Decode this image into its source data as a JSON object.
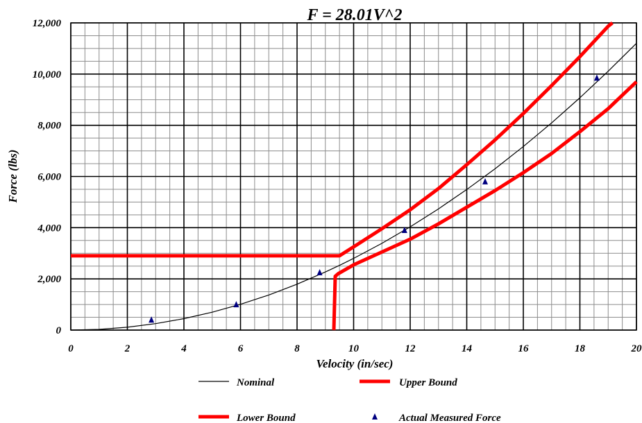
{
  "chart_data": {
    "type": "line",
    "title": "F = 28.01V^2",
    "xlabel": "Velocity (in/sec)",
    "ylabel": "Force (lbs)",
    "xlim": [
      0,
      20
    ],
    "ylim": [
      0,
      12000
    ],
    "x_major_ticks": [
      0,
      2,
      4,
      6,
      8,
      10,
      12,
      14,
      16,
      18,
      20
    ],
    "x_tick_labels": [
      "0",
      "2",
      "4",
      "6",
      "8",
      "10",
      "12",
      "14",
      "16",
      "18",
      "20"
    ],
    "y_major_ticks": [
      0,
      2000,
      4000,
      6000,
      8000,
      10000,
      12000
    ],
    "y_tick_labels": [
      "0",
      "2,000",
      "4,000",
      "6,000",
      "8,000",
      "10,000",
      "12,000"
    ],
    "minor_x_step": 0.5,
    "minor_y_step": 500,
    "grid": true,
    "legend_position": "bottom",
    "series": [
      {
        "name": "Nominal",
        "kind": "line",
        "color": "#000000",
        "x": [
          0,
          1,
          2,
          3,
          4,
          5,
          6,
          7,
          8,
          9,
          9.5,
          10,
          11,
          12,
          13,
          14,
          15,
          16,
          17,
          18,
          19,
          20
        ],
        "y": [
          0,
          28,
          112,
          252,
          448,
          700,
          1008,
          1372,
          1793,
          2269,
          2528,
          2801,
          3389,
          4033,
          4734,
          5490,
          6302,
          7171,
          8095,
          9075,
          10112,
          11204
        ]
      },
      {
        "name": "Upper Bound",
        "kind": "line",
        "color": "#ff0000",
        "x": [
          0,
          9.5,
          10,
          11,
          12,
          13,
          14,
          15,
          16,
          17,
          18,
          19,
          19.15
        ],
        "y": [
          2900,
          2900,
          3250,
          3960,
          4700,
          5530,
          6460,
          7430,
          8460,
          9550,
          10680,
          11870,
          12000
        ]
      },
      {
        "name": "Lower Bound",
        "kind": "line",
        "color": "#ff0000",
        "x": [
          9.3,
          9.35,
          9.45,
          10,
          11,
          12,
          13,
          14,
          15,
          16,
          17,
          18,
          19,
          20
        ],
        "y": [
          0,
          2100,
          2200,
          2550,
          3050,
          3550,
          4150,
          4800,
          5450,
          6150,
          6900,
          7750,
          8650,
          9700
        ]
      },
      {
        "name": "Actual Measured Force",
        "kind": "scatter",
        "color": "#000080",
        "x": [
          2.85,
          5.85,
          8.8,
          11.8,
          14.65,
          18.6
        ],
        "y": [
          400,
          1000,
          2250,
          3900,
          5800,
          9850
        ]
      }
    ]
  }
}
